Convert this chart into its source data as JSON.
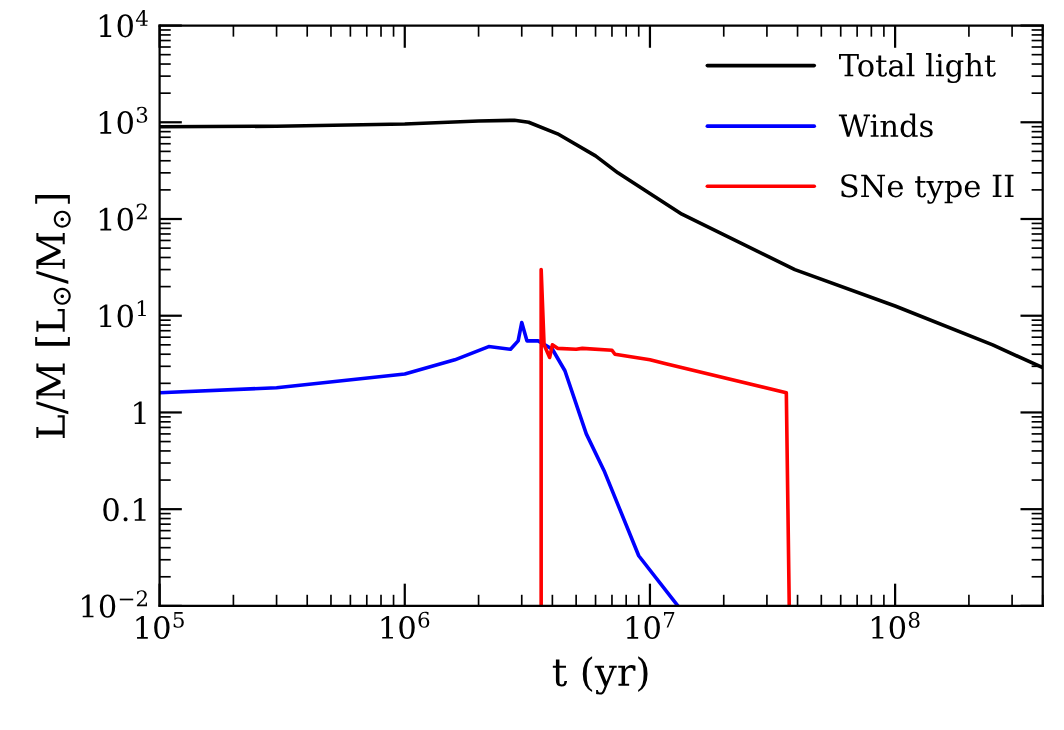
{
  "chart_data": {
    "type": "line",
    "xlabel": "t (yr)",
    "ylabel": "L/M [L$_{⊙}$/M$_{⊙}$]",
    "log": "xy",
    "legend": "top right",
    "xlim": [
      100000,
      400000000
    ],
    "ylim": [
      0.01,
      10000
    ],
    "xticks": [
      {
        "value": 100000,
        "label": "10$^{5}$"
      },
      {
        "value": 1000000,
        "label": "10$^{6}$"
      },
      {
        "value": 10000000,
        "label": "10$^{7}$"
      },
      {
        "value": 100000000,
        "label": "10$^{8}$"
      }
    ],
    "yticks": [
      {
        "value": 0.01,
        "label": "10$^{−2}$"
      },
      0.1,
      1,
      {
        "value": 10,
        "label": "10$^{1}$"
      },
      {
        "value": 100,
        "label": "10$^{2}$"
      },
      {
        "value": 1000,
        "label": "10$^{3}$"
      },
      {
        "value": 10000,
        "label": "10$^{4}$"
      }
    ],
    "series": [
      {
        "name": "Total light",
        "color": "#000000",
        "x": [
          100000,
          300000,
          1000000,
          2000000,
          2800000,
          3200000,
          4200000,
          6000000,
          7400000,
          13500000,
          39000000,
          100000000,
          250000000,
          400000000
        ],
        "values": [
          900,
          910,
          960,
          1030,
          1050,
          1000,
          760,
          450,
          300,
          112,
          30,
          12.6,
          5,
          2.9
        ]
      },
      {
        "name": "Winds",
        "color": "#0000ff",
        "x": [
          100000,
          300000,
          1000000,
          1600000,
          2200000,
          2700000,
          2900000,
          3000000,
          3150000,
          3500000,
          4000000,
          4500000,
          5500000,
          6500000,
          9000000,
          13000000
        ],
        "values": [
          1.6,
          1.8,
          2.5,
          3.5,
          4.8,
          4.5,
          5.5,
          8.5,
          5.5,
          5.5,
          4.5,
          2.7,
          0.6,
          0.25,
          0.033,
          0.01
        ]
      },
      {
        "name": "SNe type II",
        "color": "#ff0000",
        "x": [
          3600000,
          3600000,
          3700000,
          3900000,
          4000000,
          4200000,
          5000000,
          5300000,
          7000000,
          7200000,
          10000000,
          11500000,
          36000000,
          37000000
        ],
        "values": [
          0.01,
          30,
          5,
          3.7,
          5,
          4.6,
          4.5,
          4.6,
          4.4,
          4,
          3.5,
          3.2,
          1.6,
          0.01
        ]
      }
    ]
  }
}
